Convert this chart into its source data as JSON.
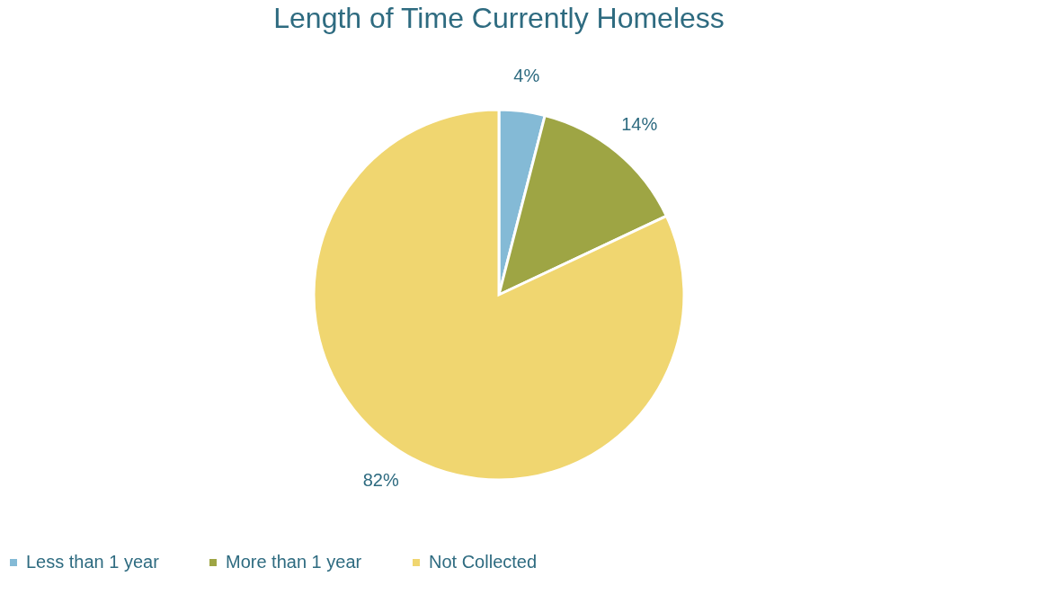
{
  "chart_data": {
    "type": "pie",
    "title": "Length of Time Currently Homeless",
    "categories": [
      "Less than 1 year",
      "More than 1 year",
      "Not Collected"
    ],
    "values": [
      4,
      14,
      82
    ],
    "colors": [
      "#84bad6",
      "#9ea544",
      "#f0d670"
    ],
    "value_labels": [
      "4%",
      "14%",
      "82%"
    ],
    "legend": "bottom"
  }
}
